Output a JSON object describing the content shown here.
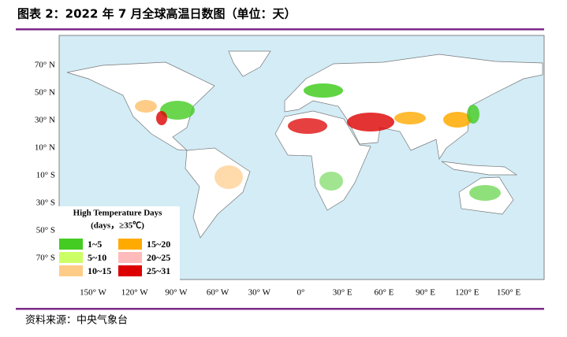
{
  "header": {
    "title": "图表 2：2022 年 7 月全球高温日数图（单位：天）"
  },
  "map": {
    "lat_labels": [
      "70° N",
      "50° N",
      "30° N",
      "10° N",
      "10° S",
      "30° S",
      "50° S",
      "70° S"
    ],
    "lon_labels": [
      "150° W",
      "120° W",
      "90° W",
      "60° W",
      "30° W",
      "0°",
      "30° E",
      "60° E",
      "90° E",
      "120° E",
      "150° E"
    ],
    "legend": {
      "title": [
        "High Temperature Days",
        "(days，≥35℃)"
      ],
      "items": [
        {
          "label": "1~5",
          "color": "#44cc22"
        },
        {
          "label": "5~10",
          "color": "#ccff66"
        },
        {
          "label": "10~15",
          "color": "#ffcc88"
        },
        {
          "label": "15~20",
          "color": "#ffaa00"
        },
        {
          "label": "20~25",
          "color": "#ffbbbb"
        },
        {
          "label": "25~31",
          "color": "#dd0000"
        }
      ]
    }
  },
  "footer": {
    "source": "资料来源：中央气象台"
  }
}
